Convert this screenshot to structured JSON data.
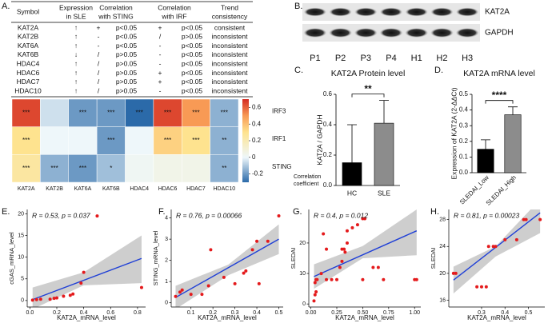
{
  "table": {
    "label": "A.",
    "headers": [
      [
        "Symbol"
      ],
      [
        "Expression",
        "in SLE"
      ],
      [
        "Correlation",
        "with STING"
      ],
      [
        "Correlation",
        "with IRF"
      ],
      [
        "Trend",
        "consistency"
      ]
    ],
    "rows": [
      [
        "KAT2A",
        "↑",
        "+",
        "p<0.05",
        "+",
        "p<0.05",
        "consistent"
      ],
      [
        "KAT2B",
        "↑",
        "-",
        "p<0.05",
        "/",
        "p>0.05",
        "inconsistent"
      ],
      [
        "KAT6A",
        "↑",
        "-",
        "p<0.05",
        "-",
        "p<0.05",
        "inconsistent"
      ],
      [
        "KAT6B",
        "↓",
        "/",
        "p>0.05",
        "-",
        "p<0.05",
        "inconsistent"
      ],
      [
        "HDAC4",
        "↑",
        "/",
        "p>0.05",
        "-",
        "p<0.05",
        "inconsistent"
      ],
      [
        "HDAC6",
        "↑",
        "/",
        "p>0.05",
        "+",
        "p<0.05",
        "inconsistent"
      ],
      [
        "HDAC7",
        "↑",
        "/",
        "p>0.05",
        "+",
        "p<0.05",
        "inconsistent"
      ],
      [
        "HDAC10",
        "↑",
        "/",
        "p>0.05",
        "-",
        "p<0.05",
        "inconsistent"
      ]
    ]
  },
  "blot": {
    "label": "B.",
    "bands": [
      "KAT2A",
      "GAPDH"
    ],
    "lanes": [
      "P1",
      "P2",
      "P3",
      "P4",
      "H1",
      "H2",
      "H3"
    ]
  },
  "chart_data": [
    {
      "type": "heatmap",
      "columns": [
        "KAT2A",
        "KAT2B",
        "KAT6A",
        "KAT6B",
        "HDAC4",
        "HDAC6",
        "HDAC7",
        "HDAC10"
      ],
      "rows": [
        "IRF3",
        "IRF1",
        "STING"
      ],
      "values": [
        [
          0.65,
          -0.05,
          -0.2,
          -0.2,
          -0.3,
          0.65,
          0.5,
          -0.15
        ],
        [
          0.3,
          0.0,
          0.0,
          -0.2,
          0.0,
          0.35,
          0.3,
          -0.15
        ],
        [
          0.25,
          -0.15,
          -0.2,
          -0.12,
          0.02,
          0.05,
          0.05,
          -0.15
        ]
      ],
      "annotations": [
        [
          "***",
          null,
          "***",
          "***",
          "***",
          "***",
          "***",
          "***"
        ],
        [
          "***",
          null,
          null,
          "***",
          null,
          "***",
          "***",
          "**"
        ],
        [
          "***",
          "***",
          "***",
          "*",
          null,
          null,
          null,
          "**"
        ]
      ],
      "zlim": [
        -0.3,
        0.7
      ],
      "zticks": [
        -0.2,
        0,
        0.2,
        0.4,
        0.6
      ],
      "colors": [
        {
          "value": -0.3,
          "color": "#2b6aa9"
        },
        {
          "value": 0,
          "color": "#eef7fa"
        },
        {
          "value": 0.3,
          "color": "#fee38f"
        },
        {
          "value": 0.5,
          "color": "#f89a55"
        },
        {
          "value": 0.7,
          "color": "#d42b22"
        }
      ],
      "colorbar_label": [
        "Correlation",
        "coefficient"
      ]
    },
    {
      "type": "bar",
      "label": "C.",
      "title": "KAT2A Protein level",
      "categories": [
        "HC",
        "SLE"
      ],
      "values": [
        0.15,
        0.41
      ],
      "errors": [
        0.25,
        0.15
      ],
      "colors": [
        "#000000",
        "#8c8c8c"
      ],
      "ylabel": "KAT2A / GAPDH",
      "ylim": [
        0,
        0.6
      ],
      "yticks": [
        {
          "value": 0,
          "label": "0.0"
        },
        0.2,
        0.4,
        0.6
      ],
      "annotation": "**"
    },
    {
      "type": "bar",
      "label": "D.",
      "title": "KAT2A mRNA level",
      "categories": [
        "SLEDAI_Low",
        "SLEDAI_High"
      ],
      "values": [
        0.15,
        0.37
      ],
      "errors": [
        0.06,
        0.05
      ],
      "colors": [
        "#000000",
        "#8c8c8c"
      ],
      "ylabel": "Expression of KAT2A (2-ΔΔCt)",
      "ylim": [
        0,
        0.5
      ],
      "yticks": [
        {
          "value": 0,
          "label": "0.0"
        },
        0.1,
        0.2,
        0.3,
        0.4,
        0.5
      ],
      "annotation": "****"
    },
    {
      "type": "scatter",
      "label": "E.",
      "annotation": "R = 0.53, p = 0.037",
      "xlabel": "KAT2A_mRNA_level",
      "ylabel": "cGAS_mRNA_level",
      "color": "#e41a1c",
      "x": [
        0.02,
        0.05,
        0.08,
        0.15,
        0.18,
        0.2,
        0.25,
        0.3,
        0.32,
        0.38,
        0.4,
        0.5,
        0.83
      ],
      "y": [
        0.1,
        0.2,
        0.3,
        0.3,
        0.5,
        0.6,
        1,
        1.2,
        1.5,
        4,
        6.5,
        19.5,
        3
      ],
      "fit": {
        "x": [
          0.02,
          0.83
        ],
        "y": [
          0.2,
          9.7
        ]
      },
      "band": {
        "x": [
          0.02,
          0.4,
          0.83
        ],
        "lower": [
          -2,
          3.5,
          4
        ],
        "upper": [
          3,
          6.5,
          15
        ]
      },
      "xlim": [
        -0.02,
        0.86
      ],
      "ylim": [
        -1.5,
        21
      ],
      "xticks": [
        {
          "value": 0,
          "label": "0.0"
        },
        0.2,
        0.4,
        0.6,
        0.8
      ],
      "yticks": [
        0,
        5,
        10,
        15,
        20
      ]
    },
    {
      "type": "scatter",
      "label": "F.",
      "annotation": "R = 0.76, p = 0.00066",
      "xlabel": "KAT2A_mRNA_level",
      "ylabel": "STING_mRNA_level",
      "color": "#e41a1c",
      "x": [
        0.03,
        0.05,
        0.06,
        0.1,
        0.15,
        0.18,
        0.19,
        0.25,
        0.3,
        0.34,
        0.35,
        0.38,
        0.4,
        0.41,
        0.45,
        0.5
      ],
      "y": [
        0.3,
        0.5,
        0.6,
        0.4,
        0.4,
        0.8,
        2.5,
        1.2,
        0.9,
        1.4,
        1.5,
        2.5,
        2.9,
        0.9,
        2.9,
        4.1
      ],
      "fit": {
        "x": [
          0.03,
          0.5
        ],
        "y": [
          0.25,
          3.0
        ]
      },
      "band": {
        "x": [
          0.03,
          0.27,
          0.5
        ],
        "lower": [
          -0.3,
          1.3,
          2.3
        ],
        "upper": [
          0.8,
          1.8,
          3.7
        ]
      },
      "xlim": [
        0.01,
        0.52
      ],
      "ylim": [
        -0.2,
        4.4
      ],
      "xticks": [
        0.1,
        0.2,
        0.3,
        0.4,
        0.5
      ],
      "yticks": [
        0,
        1,
        2,
        3,
        4
      ]
    },
    {
      "type": "scatter",
      "label": "G.",
      "annotation": "R = 0.4, p = 0.012",
      "xlabel": "KAT2A_mRNA_level",
      "ylabel": "SLEDAI",
      "color": "#e41a1c",
      "x": [
        0.03,
        0.04,
        0.05,
        0.04,
        0.05,
        0.06,
        0.1,
        0.12,
        0.15,
        0.15,
        0.2,
        0.25,
        0.28,
        0.3,
        0.3,
        0.32,
        0.33,
        0.35,
        0.35,
        0.4,
        0.45,
        0.5,
        0.52,
        0.5,
        0.6,
        0.65,
        0.7,
        1.0,
        1.02
      ],
      "y": [
        1,
        3,
        4,
        7,
        8,
        8,
        10,
        23,
        8,
        18,
        8,
        8,
        12,
        14,
        18,
        18,
        17,
        20,
        24,
        25,
        26,
        28,
        28,
        8,
        12,
        12,
        8,
        8,
        8
      ],
      "fit": {
        "x": [
          0.03,
          1.02
        ],
        "y": [
          9,
          24
        ]
      },
      "band": {
        "x": [
          0.03,
          0.5,
          1.02
        ],
        "lower": [
          5,
          15,
          16
        ],
        "upper": [
          13,
          19,
          31
        ]
      },
      "xlim": [
        -0.02,
        1.06
      ],
      "ylim": [
        -1,
        31
      ],
      "xticks": [
        {
          "value": 0,
          "label": "0.00"
        },
        {
          "value": 0.25,
          "label": "0.25"
        },
        {
          "value": 0.5,
          "label": "0.50"
        },
        {
          "value": 0.75,
          "label": "0.75"
        },
        {
          "value": 1,
          "label": "1.00"
        }
      ],
      "yticks": [
        0,
        10,
        20
      ]
    },
    {
      "type": "scatter",
      "label": "H.",
      "annotation": "R = 0.81, p = 0.00023",
      "xlabel": "KAT2A_mRNA_level",
      "ylabel": "SLEDAI",
      "color": "#e41a1c",
      "x": [
        0.18,
        0.19,
        0.28,
        0.3,
        0.32,
        0.33,
        0.35,
        0.36,
        0.4,
        0.45,
        0.48,
        0.49,
        0.55
      ],
      "y": [
        20,
        20,
        18,
        18,
        18,
        24,
        24,
        24,
        25,
        25,
        28,
        28,
        28
      ],
      "fit": {
        "x": [
          0.18,
          0.55
        ],
        "y": [
          19,
          29
        ]
      },
      "band": {
        "x": [
          0.18,
          0.36,
          0.55
        ],
        "lower": [
          17,
          22.5,
          26
        ],
        "upper": [
          21,
          24,
          31
        ]
      },
      "xlim": [
        0.16,
        0.57
      ],
      "ylim": [
        15,
        29.5
      ],
      "xticks": [
        0.3,
        0.4,
        0.5
      ],
      "yticks": [
        16,
        20,
        24,
        28
      ]
    }
  ]
}
